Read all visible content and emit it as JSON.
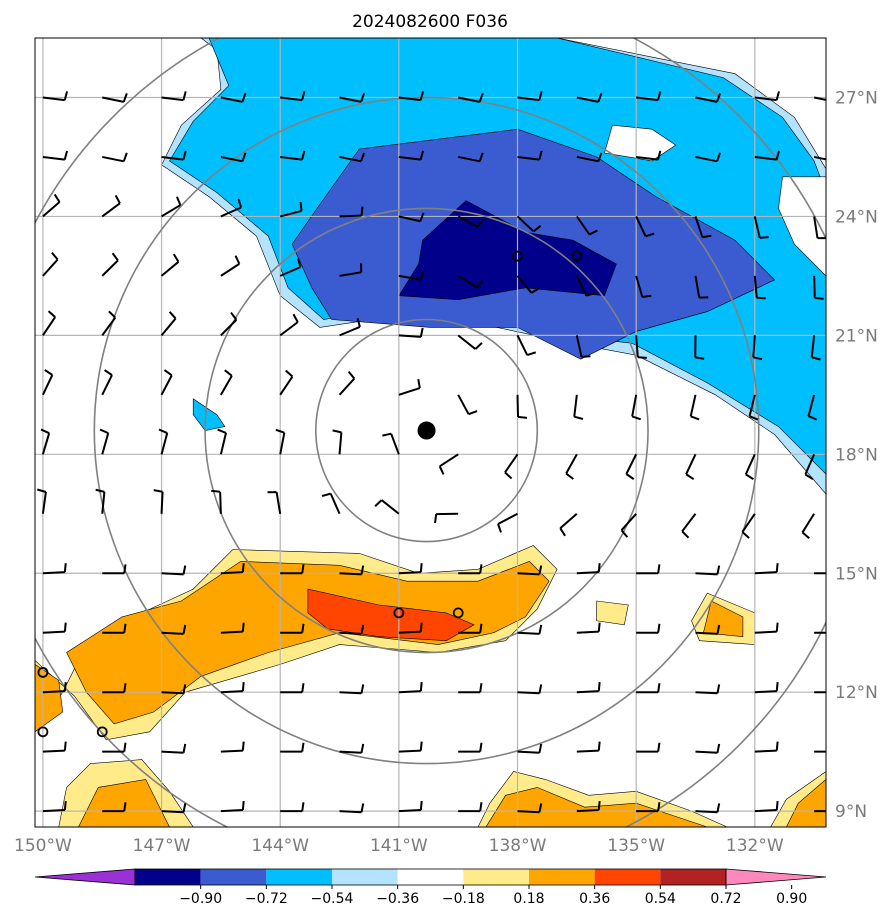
{
  "chart_data": {
    "type": "heatmap",
    "title": "2024082600 F036",
    "x_ticks": [
      "150°W",
      "147°W",
      "144°W",
      "141°W",
      "138°W",
      "135°W",
      "132°W"
    ],
    "y_ticks": [
      "27°N",
      "24°N",
      "21°N",
      "18°N",
      "15°N",
      "12°N",
      "9°N"
    ],
    "xlim_lon": [
      -150.2,
      -130.2
    ],
    "ylim_lat": [
      8.6,
      28.5
    ],
    "grid": true,
    "storm_center": {
      "lon": -140.3,
      "lat": 18.6
    },
    "range_ring_radii_deg": [
      2.8,
      5.6,
      8.4,
      11.2
    ],
    "colorbar": {
      "orientation": "horizontal",
      "extend": "both",
      "levels": [
        "−0.90",
        "−0.72",
        "−0.54",
        "−0.36",
        "−0.18",
        "0.18",
        "0.36",
        "0.54",
        "0.72",
        "0.90"
      ],
      "colors": [
        "#9b30d6",
        "#00008b",
        "#3b5bd1",
        "#00bfff",
        "#b3e3ff",
        "#ffffff",
        "#ffeb8a",
        "#ffa500",
        "#ff4500",
        "#b22222",
        "#ff88bb"
      ]
    },
    "regions": [
      {
        "level": "light_blue",
        "color": "#b3e3ff",
        "points": [
          [
            -146.0,
            28.5
          ],
          [
            -137.0,
            28.5
          ],
          [
            -132.5,
            27.6
          ],
          [
            -131.0,
            26.5
          ],
          [
            -130.2,
            25.2
          ],
          [
            -130.2,
            17.0
          ],
          [
            -131.5,
            18.5
          ],
          [
            -133.0,
            19.5
          ],
          [
            -135.0,
            20.5
          ],
          [
            -136.6,
            20.8
          ],
          [
            -139.0,
            21.3
          ],
          [
            -141.0,
            21.5
          ],
          [
            -143.0,
            21.2
          ],
          [
            -144.0,
            22.0
          ],
          [
            -144.6,
            23.5
          ],
          [
            -145.8,
            24.5
          ],
          [
            -147.0,
            25.3
          ],
          [
            -146.5,
            26.3
          ],
          [
            -145.5,
            27.2
          ],
          [
            -145.6,
            28.2
          ]
        ]
      },
      {
        "level": "cyan",
        "color": "#00bfff",
        "points": [
          [
            -145.8,
            28.5
          ],
          [
            -137.0,
            28.5
          ],
          [
            -132.8,
            27.5
          ],
          [
            -131.3,
            26.5
          ],
          [
            -130.5,
            25.4
          ],
          [
            -130.2,
            24.6
          ],
          [
            -130.2,
            17.5
          ],
          [
            -131.4,
            18.7
          ],
          [
            -133.2,
            19.8
          ],
          [
            -135.1,
            20.8
          ],
          [
            -136.8,
            21.0
          ],
          [
            -139.2,
            21.5
          ],
          [
            -141.1,
            21.7
          ],
          [
            -142.9,
            21.4
          ],
          [
            -143.8,
            22.2
          ],
          [
            -144.3,
            23.5
          ],
          [
            -145.6,
            24.6
          ],
          [
            -146.8,
            25.4
          ],
          [
            -146.2,
            26.4
          ],
          [
            -145.3,
            27.3
          ]
        ]
      },
      {
        "level": "blue",
        "color": "#3b5bd1",
        "points": [
          [
            -142.0,
            25.7
          ],
          [
            -138.0,
            26.2
          ],
          [
            -136.0,
            25.5
          ],
          [
            -134.5,
            24.5
          ],
          [
            -132.5,
            23.4
          ],
          [
            -131.5,
            22.4
          ],
          [
            -133.2,
            21.6
          ],
          [
            -135.0,
            21.1
          ],
          [
            -136.4,
            20.4
          ],
          [
            -138.0,
            21.2
          ],
          [
            -140.2,
            21.2
          ],
          [
            -142.7,
            21.4
          ],
          [
            -143.2,
            22.2
          ],
          [
            -143.7,
            23.3
          ],
          [
            -143.0,
            24.3
          ]
        ]
      },
      {
        "level": "dark_blue",
        "color": "#00008b",
        "points": [
          [
            -139.3,
            24.4
          ],
          [
            -137.8,
            23.6
          ],
          [
            -136.6,
            23.4
          ],
          [
            -135.5,
            22.8
          ],
          [
            -135.8,
            22.0
          ],
          [
            -137.8,
            22.2
          ],
          [
            -139.5,
            21.9
          ],
          [
            -141.0,
            22.0
          ],
          [
            -140.5,
            22.8
          ],
          [
            -140.4,
            23.4
          ]
        ]
      },
      {
        "level": "yellow",
        "color": "#ffeb8a",
        "points": [
          [
            -145.2,
            15.6
          ],
          [
            -142.0,
            15.5
          ],
          [
            -140.5,
            15.0
          ],
          [
            -139.0,
            15.1
          ],
          [
            -137.6,
            15.7
          ],
          [
            -137.0,
            15.1
          ],
          [
            -137.5,
            14.1
          ],
          [
            -138.3,
            13.3
          ],
          [
            -140.0,
            13.0
          ],
          [
            -142.5,
            13.2
          ],
          [
            -144.0,
            12.7
          ],
          [
            -146.4,
            12.0
          ],
          [
            -147.3,
            11.0
          ],
          [
            -148.4,
            10.8
          ],
          [
            -149.2,
            11.9
          ],
          [
            -150.2,
            12.8
          ],
          [
            -150.2,
            11.0
          ],
          [
            -149.5,
            12.0
          ],
          [
            -149.0,
            13.0
          ],
          [
            -147.5,
            14.0
          ],
          [
            -146.2,
            14.6
          ]
        ]
      },
      {
        "level": "orange",
        "color": "#ffa500",
        "points": [
          [
            -145.0,
            15.3
          ],
          [
            -142.5,
            15.2
          ],
          [
            -140.8,
            14.8
          ],
          [
            -139.0,
            14.8
          ],
          [
            -137.7,
            15.3
          ],
          [
            -137.2,
            14.8
          ],
          [
            -137.8,
            13.9
          ],
          [
            -138.6,
            13.5
          ],
          [
            -140.0,
            13.2
          ],
          [
            -142.5,
            13.5
          ],
          [
            -144.3,
            13.0
          ],
          [
            -146.0,
            12.4
          ],
          [
            -147.2,
            11.5
          ],
          [
            -148.2,
            11.2
          ],
          [
            -148.9,
            12.0
          ],
          [
            -149.4,
            13.0
          ],
          [
            -148.0,
            13.9
          ],
          [
            -146.5,
            14.3
          ]
        ]
      },
      {
        "level": "red_orange",
        "color": "#ff4500",
        "points": [
          [
            -143.3,
            14.6
          ],
          [
            -141.5,
            14.2
          ],
          [
            -139.8,
            14.0
          ],
          [
            -139.1,
            13.7
          ],
          [
            -139.8,
            13.3
          ],
          [
            -141.5,
            13.4
          ],
          [
            -142.8,
            13.6
          ],
          [
            -143.3,
            14.0
          ]
        ]
      },
      {
        "level": "orange_sw",
        "color": "#ffa500",
        "points": [
          [
            -150.2,
            12.7
          ],
          [
            -149.6,
            12.3
          ],
          [
            -149.5,
            11.5
          ],
          [
            -150.2,
            11.0
          ]
        ]
      },
      {
        "level": "yellow_s",
        "color": "#ffeb8a",
        "points": [
          [
            -149.6,
            8.6
          ],
          [
            -149.4,
            9.6
          ],
          [
            -148.8,
            10.2
          ],
          [
            -147.5,
            10.3
          ],
          [
            -146.8,
            9.5
          ],
          [
            -146.2,
            8.6
          ]
        ]
      },
      {
        "level": "orange_s",
        "color": "#ffa500",
        "points": [
          [
            -149.1,
            8.6
          ],
          [
            -148.6,
            9.6
          ],
          [
            -147.4,
            9.8
          ],
          [
            -147.1,
            9.2
          ],
          [
            -146.8,
            8.6
          ]
        ]
      },
      {
        "level": "yellow_se",
        "color": "#ffeb8a",
        "points": [
          [
            -139.0,
            8.6
          ],
          [
            -138.7,
            9.2
          ],
          [
            -138.1,
            10.0
          ],
          [
            -137.3,
            9.8
          ],
          [
            -136.2,
            9.4
          ],
          [
            -135.0,
            9.5
          ],
          [
            -133.6,
            9.0
          ],
          [
            -132.7,
            8.6
          ]
        ]
      },
      {
        "level": "orange_se",
        "color": "#ffa500",
        "points": [
          [
            -138.8,
            8.6
          ],
          [
            -138.3,
            9.4
          ],
          [
            -137.5,
            9.6
          ],
          [
            -136.3,
            9.1
          ],
          [
            -135.0,
            9.2
          ],
          [
            -133.8,
            8.8
          ],
          [
            -133.2,
            8.6
          ]
        ]
      },
      {
        "level": "yellow_e",
        "color": "#ffeb8a",
        "points": [
          [
            -130.2,
            10.0
          ],
          [
            -131.2,
            9.3
          ],
          [
            -131.6,
            8.6
          ],
          [
            -130.2,
            8.6
          ]
        ]
      },
      {
        "level": "orange_e",
        "color": "#ffa500",
        "points": [
          [
            -130.2,
            9.8
          ],
          [
            -130.9,
            9.2
          ],
          [
            -131.2,
            8.6
          ],
          [
            -130.2,
            8.6
          ]
        ]
      },
      {
        "level": "yellow_e2",
        "color": "#ffeb8a",
        "points": [
          [
            -133.2,
            14.5
          ],
          [
            -132.0,
            14.0
          ],
          [
            -132.0,
            13.2
          ],
          [
            -133.4,
            13.3
          ],
          [
            -133.6,
            13.8
          ]
        ]
      },
      {
        "level": "orange_e2",
        "color": "#ffa500",
        "points": [
          [
            -133.1,
            14.3
          ],
          [
            -132.3,
            13.9
          ],
          [
            -132.3,
            13.4
          ],
          [
            -133.3,
            13.5
          ]
        ]
      },
      {
        "level": "yellow_mid",
        "color": "#ffeb8a",
        "points": [
          [
            -136.0,
            14.3
          ],
          [
            -135.2,
            14.2
          ],
          [
            -135.3,
            13.7
          ],
          [
            -136.0,
            13.8
          ]
        ]
      },
      {
        "level": "cyan_w",
        "color": "#00bfff",
        "points": [
          [
            -146.2,
            19.4
          ],
          [
            -145.6,
            19.0
          ],
          [
            -145.4,
            18.7
          ],
          [
            -145.9,
            18.6
          ],
          [
            -146.2,
            19.0
          ]
        ]
      },
      {
        "level": "white_hole",
        "color": "#ffffff",
        "points": [
          [
            -135.6,
            26.3
          ],
          [
            -134.6,
            26.2
          ],
          [
            -134.0,
            25.8
          ],
          [
            -134.6,
            25.4
          ],
          [
            -135.8,
            25.6
          ]
        ]
      },
      {
        "level": "white_hole2",
        "color": "#ffffff",
        "points": [
          [
            -131.3,
            25.0
          ],
          [
            -130.2,
            25.0
          ],
          [
            -130.2,
            22.5
          ],
          [
            -131.0,
            23.3
          ],
          [
            -131.4,
            24.2
          ]
        ]
      }
    ],
    "wind_barbs": {
      "lon_start": -150.0,
      "lon_step": 1.5,
      "lat_start": 27.0,
      "lat_step": -1.5,
      "columns": 14,
      "rows": 13
    },
    "markers": [
      {
        "lon": -138.0,
        "lat": 23.0
      },
      {
        "lon": -136.5,
        "lat": 23.0
      },
      {
        "lon": -141.0,
        "lat": 14.0
      },
      {
        "lon": -139.5,
        "lat": 14.0
      },
      {
        "lon": -150.0,
        "lat": 12.5
      },
      {
        "lon": -150.0,
        "lat": 11.0
      },
      {
        "lon": -148.5,
        "lat": 11.0
      }
    ]
  }
}
